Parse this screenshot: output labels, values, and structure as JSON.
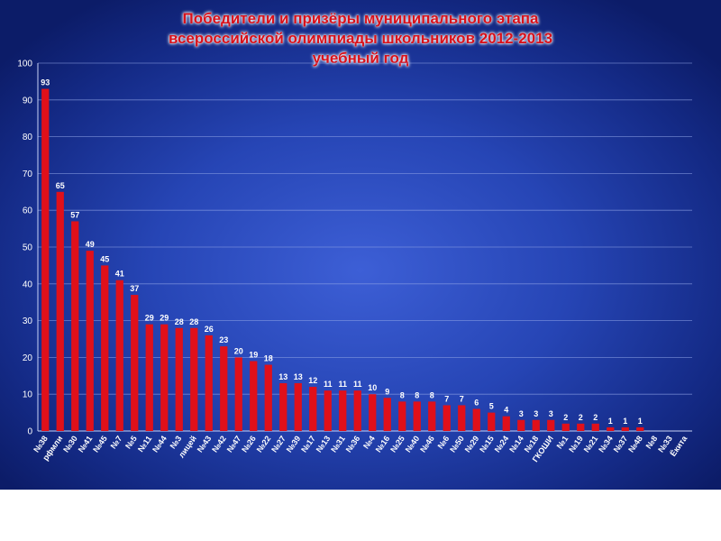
{
  "chart_data": {
    "type": "bar",
    "title": [
      "Победители и призёры муниципального этапа",
      "всероссийской олимпиады школьников 2012-2013",
      "учебный год"
    ],
    "xlabel": "",
    "ylabel": "",
    "ylim": [
      0,
      100
    ],
    "yticks": [
      0,
      10,
      20,
      30,
      40,
      50,
      60,
      70,
      80,
      90,
      100
    ],
    "grid": true,
    "legend": "none",
    "bar_color": "#e0101a",
    "categories": [
      "№38",
      "рфмли",
      "№30",
      "№41",
      "№45",
      "№7",
      "№5",
      "№11",
      "№44",
      "№3",
      "лицей",
      "№43",
      "№42",
      "№47",
      "№26",
      "№22",
      "№27",
      "№39",
      "№17",
      "№13",
      "№31",
      "№36",
      "№4",
      "№16",
      "№25",
      "№40",
      "№46",
      "№6",
      "№50",
      "№29",
      "№15",
      "№24",
      "№14",
      "№18",
      "ГКОШИ",
      "№1",
      "№19",
      "№21",
      "№34",
      "№37",
      "№48",
      "№8",
      "№33",
      "Ёкита"
    ],
    "values": [
      93,
      65,
      57,
      49,
      45,
      41,
      37,
      29,
      29,
      28,
      28,
      26,
      23,
      20,
      19,
      18,
      13,
      13,
      12,
      11,
      11,
      11,
      10,
      9,
      8,
      8,
      8,
      7,
      7,
      6,
      5,
      4,
      3,
      3,
      3,
      2,
      2,
      2,
      1,
      1,
      1,
      0,
      0,
      0
    ],
    "value_labels": [
      "93",
      "65",
      "57",
      "49",
      "45",
      "41",
      "37",
      "29",
      "29",
      "28",
      "28",
      "26",
      "23",
      "20",
      "19",
      "18",
      "13",
      "13",
      "12",
      "11",
      "11",
      "11",
      "10",
      "9",
      "8",
      "8",
      "8",
      "7",
      "7",
      "6",
      "5",
      "4",
      "3",
      "3",
      "3",
      "2",
      "2",
      "2",
      "1",
      "1",
      "1",
      "",
      "",
      ""
    ]
  }
}
